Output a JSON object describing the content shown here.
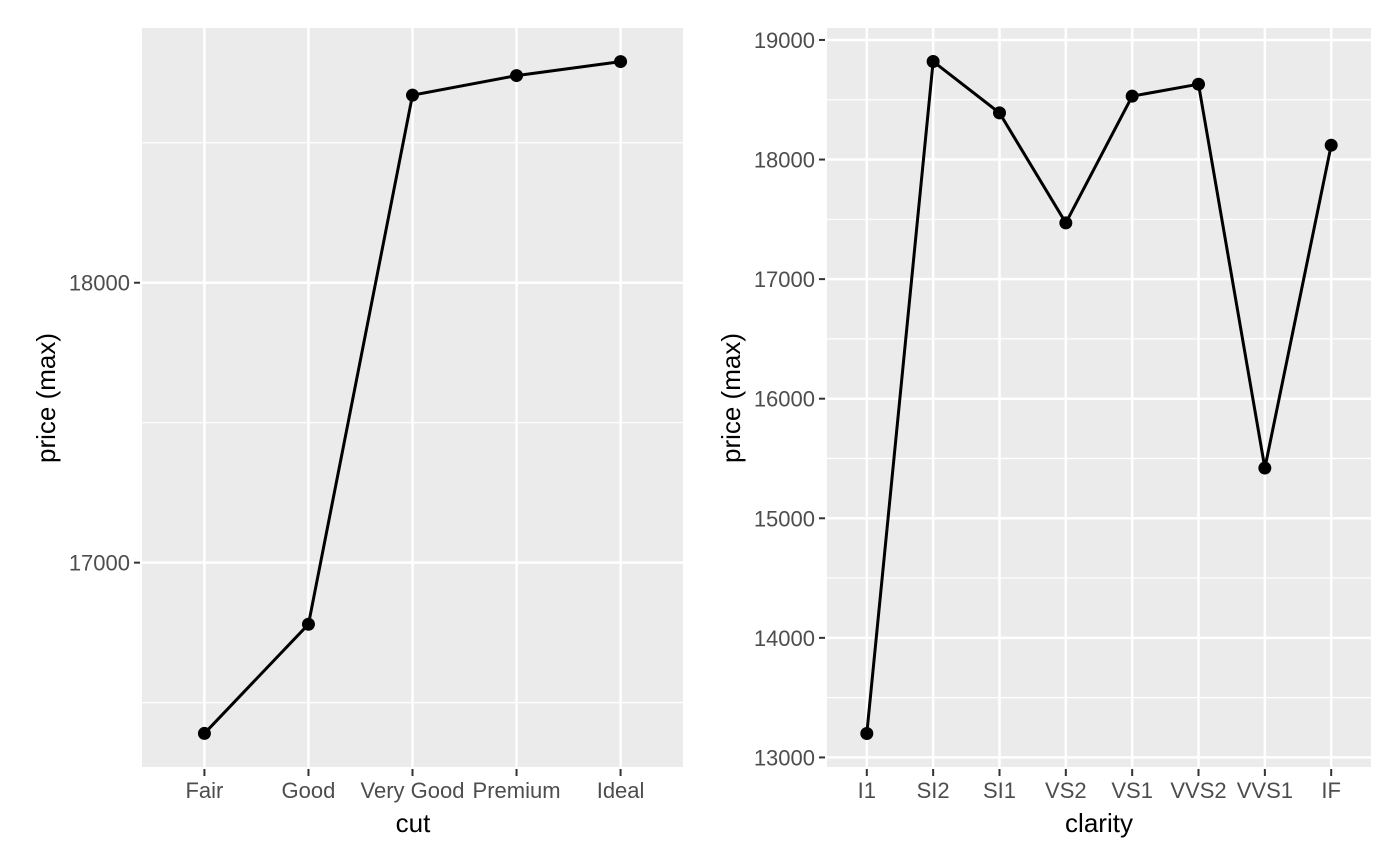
{
  "figure": {
    "background": "#ffffff",
    "description": "Two ggplot-style line charts of maximum diamond price by cut and by clarity"
  },
  "theme": {
    "panel_background": "#EBEBEB",
    "grid_color": "#FFFFFF",
    "axis_text_color": "#4D4D4D",
    "axis_title_color": "#000000",
    "tick_mark_color": "#333333",
    "line_color": "#000000",
    "point_color": "#000000"
  },
  "chart_data": [
    {
      "type": "line",
      "title": "",
      "xlabel": "cut",
      "ylabel": "price (max)",
      "categories": [
        "Fair",
        "Good",
        "Very Good",
        "Premium",
        "Ideal"
      ],
      "values": [
        16390,
        16780,
        18670,
        18740,
        18790
      ],
      "y_ticks": [
        17000,
        18000
      ],
      "ylim": [
        16270,
        18910
      ],
      "grid": true,
      "legend": "none",
      "markers": true
    },
    {
      "type": "line",
      "title": "",
      "xlabel": "clarity",
      "ylabel": "price (max)",
      "categories": [
        "I1",
        "SI2",
        "SI1",
        "VS2",
        "VS1",
        "VVS2",
        "VVS1",
        "IF"
      ],
      "values": [
        13200,
        18820,
        18390,
        17470,
        18530,
        18630,
        15420,
        18120
      ],
      "y_ticks": [
        13000,
        14000,
        15000,
        16000,
        17000,
        18000,
        19000
      ],
      "ylim": [
        12920,
        19100
      ],
      "grid": true,
      "legend": "none",
      "markers": true
    }
  ]
}
